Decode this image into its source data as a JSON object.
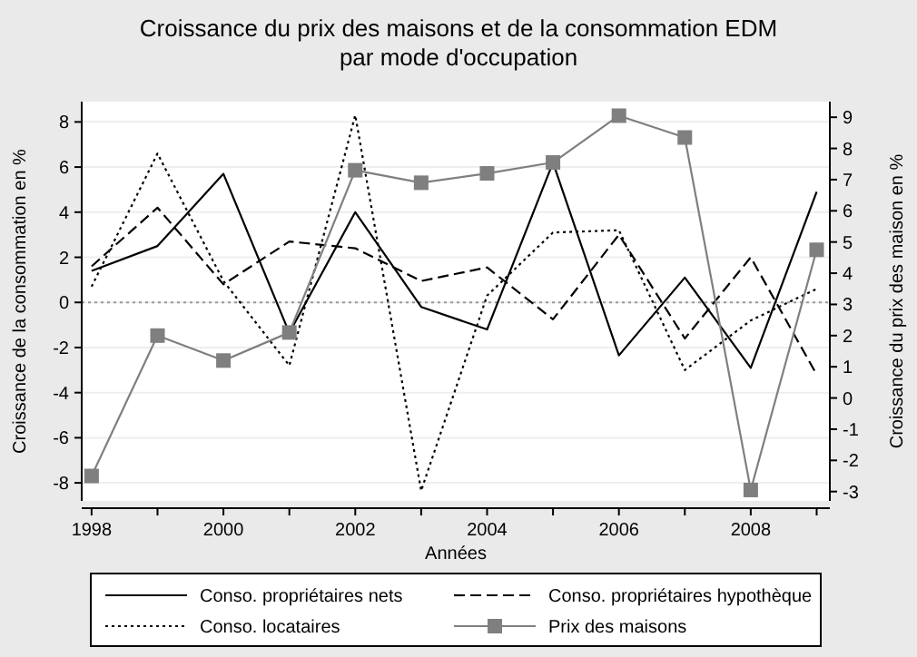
{
  "chart_data": {
    "type": "line",
    "title": "Croissance du prix des maisons et de la consommation EDM par mode d'occupation",
    "xlabel": "Années",
    "ylabel": "Croissance de la consommation en %",
    "y2label": "Croissance du prix des maison en %",
    "x": [
      1998,
      1999,
      2000,
      2001,
      2002,
      2003,
      2004,
      2005,
      2006,
      2007,
      2008,
      2009
    ],
    "xlim": [
      1997.85,
      2009.2
    ],
    "xticks": [
      1998,
      {
        "value": 1999,
        "label": null
      },
      2000,
      {
        "value": 2001,
        "label": null
      },
      2002,
      {
        "value": 2003,
        "label": null
      },
      2004,
      {
        "value": 2005,
        "label": null
      },
      2006,
      {
        "value": 2007,
        "label": null
      },
      2008,
      {
        "value": 2009,
        "label": null
      }
    ],
    "ylim": [
      -8.8,
      8.9
    ],
    "yticks": [
      -8,
      -6,
      -4,
      -2,
      0,
      2,
      4,
      6,
      8
    ],
    "y2lim": [
      -3.3,
      9.5
    ],
    "y2ticks": [
      -3,
      -2,
      -1,
      0,
      1,
      2,
      3,
      4,
      5,
      6,
      7,
      8,
      9
    ],
    "grid": "y",
    "legend": "bottom",
    "ref_lines": [
      {
        "axis": "y",
        "value": 0,
        "color": "#999999",
        "line_style": "dotted"
      }
    ],
    "series": [
      {
        "name": "Conso. propriétaires nets",
        "color": "#000000",
        "line_style": "solid",
        "marker": "none",
        "values": [
          1.4,
          2.5,
          5.7,
          -1.35,
          4.0,
          -0.2,
          -1.2,
          6.2,
          -2.35,
          1.1,
          -2.9,
          4.9
        ]
      },
      {
        "name": "Conso. propriétaires hypothèque",
        "color": "#000000",
        "line_style": "dashed",
        "marker": "none",
        "values": [
          1.6,
          4.2,
          0.8,
          2.7,
          2.4,
          0.95,
          1.55,
          -0.75,
          3.0,
          -1.6,
          2.0,
          -3.2
        ]
      },
      {
        "name": "Conso. locataires",
        "color": "#000000",
        "line_style": "dotted",
        "marker": "none",
        "values": [
          0.7,
          6.6,
          0.95,
          -2.8,
          8.3,
          -8.35,
          0.3,
          3.1,
          3.2,
          -3.0,
          -0.8,
          0.6
        ]
      },
      {
        "name": "Prix des maisons",
        "color": "#7f7f7f",
        "line_style": "solid",
        "marker": "square",
        "axis": "y2",
        "values": [
          -2.5,
          2.0,
          1.2,
          2.1,
          7.3,
          6.9,
          7.2,
          7.55,
          9.05,
          8.35,
          -2.95,
          4.75
        ]
      }
    ]
  }
}
